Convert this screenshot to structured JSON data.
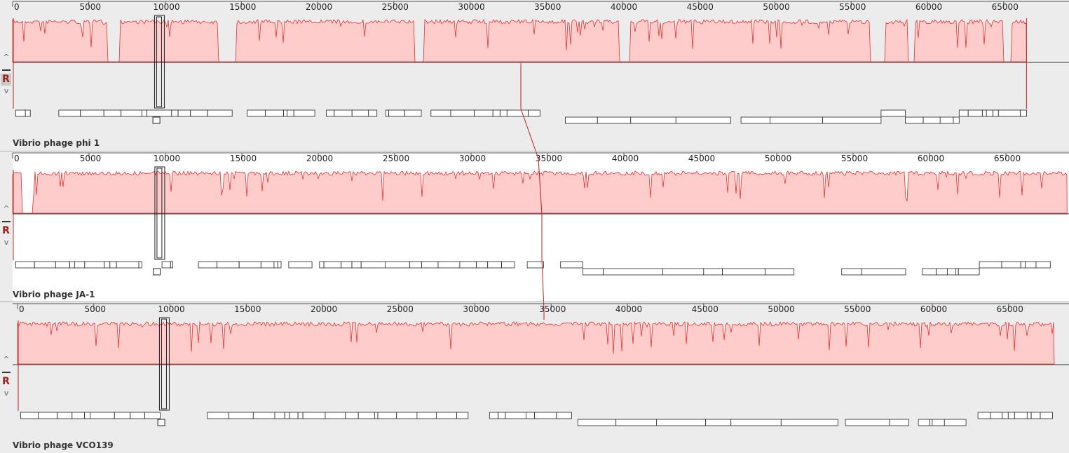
{
  "genomes": [
    {
      "name": "Vibrio phage phi 1",
      "length": 66500
    },
    {
      "name": "Vibrio phage JA-1",
      "length": 69000
    },
    {
      "name": "Vibrio phage VCO139",
      "length": 68000
    }
  ],
  "ruler_ticks": [
    "0",
    "5000",
    "10000",
    "15000",
    "20000",
    "25000",
    "30000",
    "35000",
    "40000",
    "45000",
    "50000",
    "55000",
    "60000",
    "65000"
  ],
  "controls": {
    "up": "^",
    "down": "v",
    "reverse": "R"
  },
  "colors": {
    "similarity_fill": "#ffcccc",
    "similarity_line": "#e03030",
    "lcb_line": "#c02020",
    "gene_stroke": "#222222"
  }
}
